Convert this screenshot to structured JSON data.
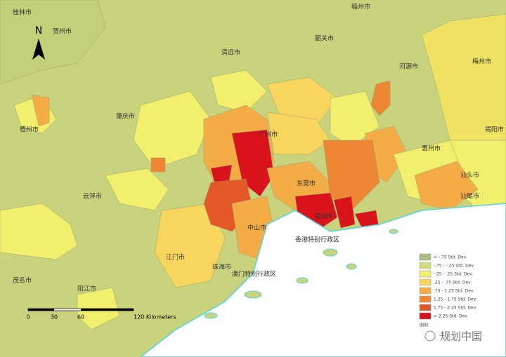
{
  "map": {
    "north": "N",
    "place_labels": [
      "桂林市",
      "贺州市",
      "赣州市",
      "清远市",
      "韶关市",
      "梅州市",
      "河源市",
      "揭阳市",
      "汕头市",
      "肇庆市",
      "梧州市",
      "云浮市",
      "广州市",
      "东莞市",
      "深圳市",
      "惠州市",
      "汕尾市",
      "中山市",
      "江门市",
      "珠海市",
      "香港特别行政区",
      "澳门特别行政区",
      "阳江市",
      "茂名市"
    ],
    "legend": {
      "items": [
        {
          "label": "< -.75 Std. Dev.",
          "color": "#a9bf83"
        },
        {
          "label": "-.75 - -.25 Std. Dev.",
          "color": "#d3df7e"
        },
        {
          "label": "-.25 - .25 Std. Dev.",
          "color": "#f2ee6e"
        },
        {
          "label": ".25 - .75 Std. Dev.",
          "color": "#f8d55e"
        },
        {
          "label": ".75 - 1.25 Std. Dev.",
          "color": "#f4ad46"
        },
        {
          "label": "1.25 - 1.75 Std. Dev.",
          "color": "#ed8734"
        },
        {
          "label": "1.75 - 2.25 Std. Dev.",
          "color": "#e35826"
        },
        {
          "label": "> 2.25 Std. Dev.",
          "color": "#d8131c"
        }
      ],
      "footer": "图例"
    },
    "scale_bar": {
      "ticks": [
        "0",
        "30",
        "60",
        "120 Kilometers"
      ]
    },
    "watermark": "规划中国"
  }
}
